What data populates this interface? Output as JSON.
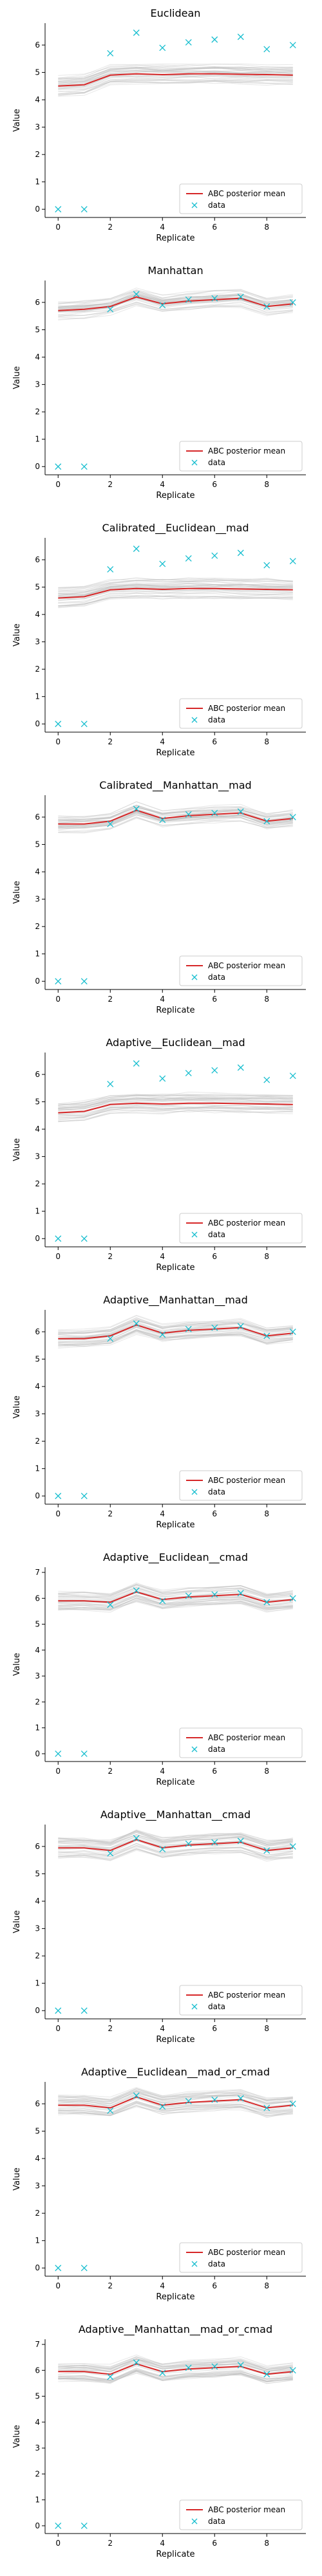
{
  "figure": {
    "background": "#ffffff"
  },
  "colors": {
    "mean_line": "#d62728",
    "data_marker": "#17becf",
    "traces": "#bbbbbb"
  },
  "chart_data": [
    {
      "type": "line",
      "title": "Euclidean",
      "xlabel": "Replicate",
      "ylabel": "Value",
      "xlim": [
        -0.5,
        9.5
      ],
      "ylim": [
        -0.3,
        6.8
      ],
      "xticks": [
        0,
        2,
        4,
        6,
        8
      ],
      "yticks": [
        0,
        1,
        2,
        3,
        4,
        5,
        6
      ],
      "grid": false,
      "legend": "lower-right",
      "x": [
        0,
        1,
        2,
        3,
        4,
        5,
        6,
        7,
        8,
        9
      ],
      "series": [
        {
          "name": "ABC posterior mean",
          "kind": "line",
          "values": [
            4.5,
            4.55,
            4.9,
            4.95,
            4.92,
            4.95,
            4.95,
            4.93,
            4.92,
            4.9
          ]
        },
        {
          "name": "data",
          "kind": "marker",
          "values": [
            0.0,
            0.0,
            5.7,
            6.45,
            5.9,
            6.1,
            6.2,
            6.3,
            5.85,
            6.0
          ]
        }
      ],
      "band_halfwidth": 0.35
    },
    {
      "type": "line",
      "title": "Manhattan",
      "xlabel": "Replicate",
      "ylabel": "Value",
      "xlim": [
        -0.5,
        9.5
      ],
      "ylim": [
        -0.3,
        6.8
      ],
      "xticks": [
        0,
        2,
        4,
        6,
        8
      ],
      "yticks": [
        0,
        1,
        2,
        3,
        4,
        5,
        6
      ],
      "grid": false,
      "legend": "lower-right",
      "x": [
        0,
        1,
        2,
        3,
        4,
        5,
        6,
        7,
        8,
        9
      ],
      "series": [
        {
          "name": "ABC posterior mean",
          "kind": "line",
          "values": [
            5.7,
            5.75,
            5.85,
            6.2,
            5.95,
            6.05,
            6.1,
            6.15,
            5.85,
            5.95
          ]
        },
        {
          "name": "data",
          "kind": "marker",
          "values": [
            0.0,
            0.0,
            5.75,
            6.3,
            5.9,
            6.1,
            6.15,
            6.2,
            5.85,
            6.0
          ]
        }
      ],
      "band_halfwidth": 0.3
    },
    {
      "type": "line",
      "title": "Calibrated__Euclidean__mad",
      "xlabel": "Replicate",
      "ylabel": "Value",
      "xlim": [
        -0.5,
        9.5
      ],
      "ylim": [
        -0.3,
        6.8
      ],
      "xticks": [
        0,
        2,
        4,
        6,
        8
      ],
      "yticks": [
        0,
        1,
        2,
        3,
        4,
        5,
        6
      ],
      "grid": false,
      "legend": "lower-right",
      "x": [
        0,
        1,
        2,
        3,
        4,
        5,
        6,
        7,
        8,
        9
      ],
      "series": [
        {
          "name": "ABC posterior mean",
          "kind": "line",
          "values": [
            4.6,
            4.65,
            4.9,
            4.95,
            4.92,
            4.95,
            4.95,
            4.93,
            4.92,
            4.9
          ]
        },
        {
          "name": "data",
          "kind": "marker",
          "values": [
            0.0,
            0.0,
            5.65,
            6.4,
            5.85,
            6.05,
            6.15,
            6.25,
            5.8,
            5.95
          ]
        }
      ],
      "band_halfwidth": 0.35
    },
    {
      "type": "line",
      "title": "Calibrated__Manhattan__mad",
      "xlabel": "Replicate",
      "ylabel": "Value",
      "xlim": [
        -0.5,
        9.5
      ],
      "ylim": [
        -0.3,
        6.8
      ],
      "xticks": [
        0,
        2,
        4,
        6,
        8
      ],
      "yticks": [
        0,
        1,
        2,
        3,
        4,
        5,
        6
      ],
      "grid": false,
      "legend": "lower-right",
      "x": [
        0,
        1,
        2,
        3,
        4,
        5,
        6,
        7,
        8,
        9
      ],
      "series": [
        {
          "name": "ABC posterior mean",
          "kind": "line",
          "values": [
            5.75,
            5.75,
            5.85,
            6.25,
            5.95,
            6.05,
            6.1,
            6.15,
            5.85,
            5.95
          ]
        },
        {
          "name": "data",
          "kind": "marker",
          "values": [
            0.0,
            0.0,
            5.75,
            6.3,
            5.9,
            6.1,
            6.15,
            6.2,
            5.85,
            6.0
          ]
        }
      ],
      "band_halfwidth": 0.3
    },
    {
      "type": "line",
      "title": "Adaptive__Euclidean__mad",
      "xlabel": "Replicate",
      "ylabel": "Value",
      "xlim": [
        -0.5,
        9.5
      ],
      "ylim": [
        -0.3,
        6.8
      ],
      "xticks": [
        0,
        2,
        4,
        6,
        8
      ],
      "yticks": [
        0,
        1,
        2,
        3,
        4,
        5,
        6
      ],
      "grid": false,
      "legend": "lower-right",
      "x": [
        0,
        1,
        2,
        3,
        4,
        5,
        6,
        7,
        8,
        9
      ],
      "series": [
        {
          "name": "ABC posterior mean",
          "kind": "line",
          "values": [
            4.6,
            4.65,
            4.9,
            4.95,
            4.92,
            4.95,
            4.95,
            4.93,
            4.92,
            4.9
          ]
        },
        {
          "name": "data",
          "kind": "marker",
          "values": [
            0.0,
            0.0,
            5.65,
            6.4,
            5.85,
            6.05,
            6.15,
            6.25,
            5.8,
            5.95
          ]
        }
      ],
      "band_halfwidth": 0.35
    },
    {
      "type": "line",
      "title": "Adaptive__Manhattan__mad",
      "xlabel": "Replicate",
      "ylabel": "Value",
      "xlim": [
        -0.5,
        9.5
      ],
      "ylim": [
        -0.3,
        6.8
      ],
      "xticks": [
        0,
        2,
        4,
        6,
        8
      ],
      "yticks": [
        0,
        1,
        2,
        3,
        4,
        5,
        6
      ],
      "grid": false,
      "legend": "lower-right",
      "x": [
        0,
        1,
        2,
        3,
        4,
        5,
        6,
        7,
        8,
        9
      ],
      "series": [
        {
          "name": "ABC posterior mean",
          "kind": "line",
          "values": [
            5.75,
            5.75,
            5.85,
            6.25,
            5.95,
            6.05,
            6.1,
            6.15,
            5.85,
            5.95
          ]
        },
        {
          "name": "data",
          "kind": "marker",
          "values": [
            0.0,
            0.0,
            5.75,
            6.3,
            5.9,
            6.1,
            6.15,
            6.2,
            5.85,
            6.0
          ]
        }
      ],
      "band_halfwidth": 0.3
    },
    {
      "type": "line",
      "title": "Adaptive__Euclidean__cmad",
      "xlabel": "Replicate",
      "ylabel": "Value",
      "xlim": [
        -0.5,
        9.5
      ],
      "ylim": [
        -0.3,
        7.2
      ],
      "xticks": [
        0,
        2,
        4,
        6,
        8
      ],
      "yticks": [
        0,
        1,
        2,
        3,
        4,
        5,
        6,
        7
      ],
      "grid": false,
      "legend": "lower-right",
      "x": [
        0,
        1,
        2,
        3,
        4,
        5,
        6,
        7,
        8,
        9
      ],
      "series": [
        {
          "name": "ABC posterior mean",
          "kind": "line",
          "values": [
            5.9,
            5.9,
            5.85,
            6.25,
            5.95,
            6.05,
            6.1,
            6.15,
            5.85,
            5.95
          ]
        },
        {
          "name": "data",
          "kind": "marker",
          "values": [
            0.0,
            0.0,
            5.75,
            6.3,
            5.9,
            6.1,
            6.15,
            6.2,
            5.85,
            6.0
          ]
        }
      ],
      "band_halfwidth": 0.35
    },
    {
      "type": "line",
      "title": "Adaptive__Manhattan__cmad",
      "xlabel": "Replicate",
      "ylabel": "Value",
      "xlim": [
        -0.5,
        9.5
      ],
      "ylim": [
        -0.3,
        6.8
      ],
      "xticks": [
        0,
        2,
        4,
        6,
        8
      ],
      "yticks": [
        0,
        1,
        2,
        3,
        4,
        5,
        6
      ],
      "grid": false,
      "legend": "lower-right",
      "x": [
        0,
        1,
        2,
        3,
        4,
        5,
        6,
        7,
        8,
        9
      ],
      "series": [
        {
          "name": "ABC posterior mean",
          "kind": "line",
          "values": [
            5.95,
            5.95,
            5.85,
            6.25,
            5.95,
            6.05,
            6.1,
            6.15,
            5.85,
            5.95
          ]
        },
        {
          "name": "data",
          "kind": "marker",
          "values": [
            0.0,
            0.0,
            5.75,
            6.3,
            5.9,
            6.1,
            6.15,
            6.2,
            5.85,
            6.0
          ]
        }
      ],
      "band_halfwidth": 0.35
    },
    {
      "type": "line",
      "title": "Adaptive__Euclidean__mad_or_cmad",
      "xlabel": "Replicate",
      "ylabel": "Value",
      "xlim": [
        -0.5,
        9.5
      ],
      "ylim": [
        -0.3,
        6.8
      ],
      "xticks": [
        0,
        2,
        4,
        6,
        8
      ],
      "yticks": [
        0,
        1,
        2,
        3,
        4,
        5,
        6
      ],
      "grid": false,
      "legend": "lower-right",
      "x": [
        0,
        1,
        2,
        3,
        4,
        5,
        6,
        7,
        8,
        9
      ],
      "series": [
        {
          "name": "ABC posterior mean",
          "kind": "line",
          "values": [
            5.95,
            5.95,
            5.85,
            6.25,
            5.95,
            6.05,
            6.1,
            6.15,
            5.85,
            5.95
          ]
        },
        {
          "name": "data",
          "kind": "marker",
          "values": [
            0.0,
            0.0,
            5.75,
            6.3,
            5.9,
            6.1,
            6.15,
            6.2,
            5.85,
            6.0
          ]
        }
      ],
      "band_halfwidth": 0.35
    },
    {
      "type": "line",
      "title": "Adaptive__Manhattan__mad_or_cmad",
      "xlabel": "Replicate",
      "ylabel": "Value",
      "xlim": [
        -0.5,
        9.5
      ],
      "ylim": [
        -0.3,
        7.2
      ],
      "xticks": [
        0,
        2,
        4,
        6,
        8
      ],
      "yticks": [
        0,
        1,
        2,
        3,
        4,
        5,
        6,
        7
      ],
      "grid": false,
      "legend": "lower-right",
      "x": [
        0,
        1,
        2,
        3,
        4,
        5,
        6,
        7,
        8,
        9
      ],
      "series": [
        {
          "name": "ABC posterior mean",
          "kind": "line",
          "values": [
            5.95,
            5.95,
            5.85,
            6.25,
            5.95,
            6.05,
            6.1,
            6.15,
            5.85,
            5.95
          ]
        },
        {
          "name": "data",
          "kind": "marker",
          "values": [
            0.0,
            0.0,
            5.75,
            6.3,
            5.9,
            6.1,
            6.15,
            6.2,
            5.85,
            6.0
          ]
        }
      ],
      "band_halfwidth": 0.35
    }
  ]
}
